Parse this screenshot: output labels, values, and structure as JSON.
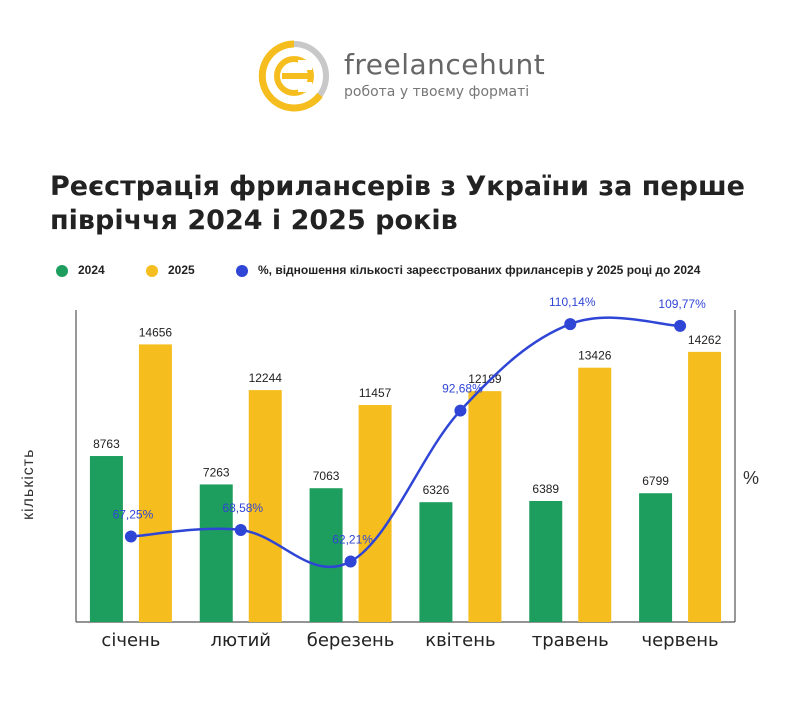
{
  "brand": {
    "name": "freelancehunt",
    "tagline": "робота у твоєму форматі",
    "colors": {
      "yellow": "#F5BE1E",
      "gray": "#C8C8C8"
    }
  },
  "chart_data": {
    "type": "bar",
    "title": "Реєстрація фрилансерів з України за перше півріччя 2024 і 2025 років",
    "categories": [
      "січень",
      "лютий",
      "березень",
      "квітень",
      "травень",
      "червень"
    ],
    "series": [
      {
        "name": "2024",
        "type": "bar",
        "color": "#1E9E5E",
        "values": [
          8763,
          7263,
          7063,
          6326,
          6389,
          6799
        ]
      },
      {
        "name": "2025",
        "type": "bar",
        "color": "#F5BE1E",
        "values": [
          14656,
          12244,
          11457,
          12189,
          13426,
          14262
        ]
      },
      {
        "name": "%, відношення кількості зареєстрованих фрилансерів у 2025 році до 2024",
        "type": "line",
        "axis": "right",
        "color": "#2F45D6",
        "values": [
          67.25,
          68.58,
          62.21,
          92.68,
          110.14,
          109.77
        ],
        "labels": [
          "67,25%",
          "68,58%",
          "62,21%",
          "92,68%",
          "110,14%",
          "109,77%"
        ]
      }
    ],
    "ylabel": "кількість",
    "y2label": "%",
    "ylim": [
      0,
      17000
    ],
    "y2lim": [
      50,
      115
    ],
    "legend": "top-left",
    "grid": false
  }
}
